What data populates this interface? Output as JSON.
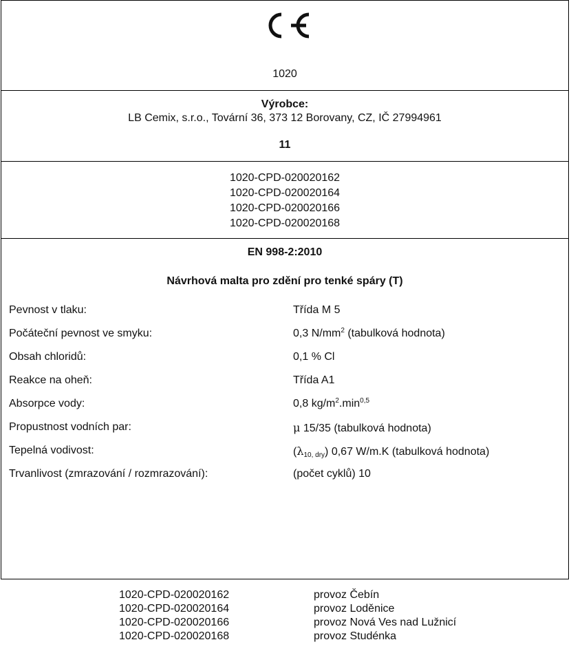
{
  "ce_mark": "CE",
  "notified_body": "1020",
  "manufacturer": {
    "heading": "Výrobce:",
    "address": "LB Cemix, s.r.o., Tovární 36, 373 12 Borovany, CZ, IČ 27994961",
    "year": "11"
  },
  "certificates": [
    "1020-CPD-020020162",
    "1020-CPD-020020164",
    "1020-CPD-020020166",
    "1020-CPD-020020168"
  ],
  "standard": "EN 998-2:2010",
  "product": "Návrhová malta pro zdění pro tenké spáry (T)",
  "properties": {
    "compressive": {
      "label": "Pevnost v tlaku:",
      "value": "Třída M 5"
    },
    "shear": {
      "label": "Počáteční pevnost ve smyku:",
      "value_prefix": "0,3 N/mm",
      "value_sup": "2",
      "value_suffix": " (tabulková hodnota)"
    },
    "chloride": {
      "label": "Obsah chloridů:",
      "value": "0,1 % Cl"
    },
    "fire": {
      "label": "Reakce na oheň:",
      "value": "Třída A1"
    },
    "water": {
      "label": "Absorpce vody:",
      "value_a": "0,8 kg/m",
      "value_sup1": "2",
      "value_b": ".min",
      "value_sup2": "0,5"
    },
    "vapour": {
      "label": "Propustnost vodních par:",
      "value_mu": "μ",
      "value_rest": " 15/35 (tabulková hodnota)"
    },
    "thermal": {
      "label": "Tepelná vodivost:",
      "value_open": "(",
      "value_lambda": "λ",
      "value_sub": "10, dry",
      "value_rest": ") 0,67 W/m.K (tabulková hodnota)"
    },
    "durability": {
      "label": "Trvanlivost (zmrazování / rozmrazování):",
      "value": "(počet cyklů) 10"
    }
  },
  "plants": [
    {
      "cert": "1020-CPD-020020162",
      "plant": "provoz Čebín"
    },
    {
      "cert": "1020-CPD-020020164",
      "plant": "provoz Loděnice"
    },
    {
      "cert": "1020-CPD-020020166",
      "plant": "provoz Nová Ves nad Lužnicí"
    },
    {
      "cert": "1020-CPD-020020168",
      "plant": "provoz Studénka"
    }
  ]
}
